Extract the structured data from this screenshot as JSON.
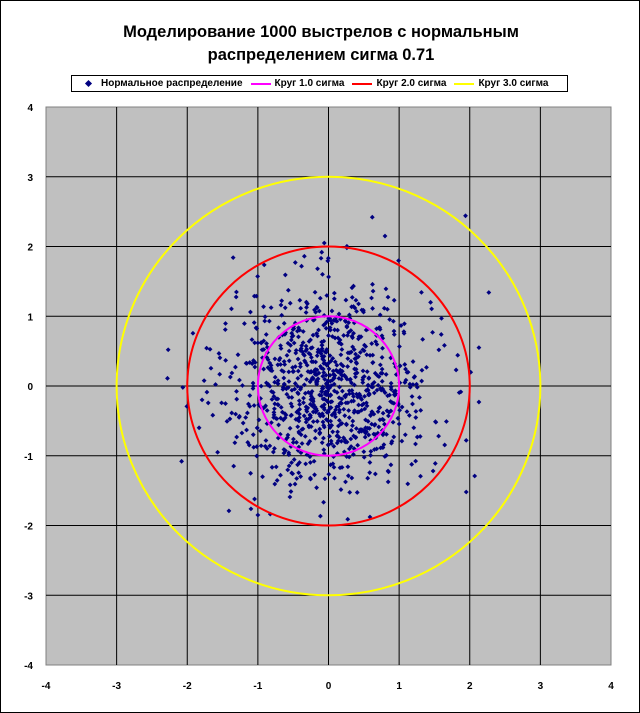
{
  "chart_data": {
    "type": "scatter",
    "title_lines": [
      "Моделирование 1000 выстрелов с нормальным",
      "распределением сигма 0.71"
    ],
    "xlim": [
      -4,
      4
    ],
    "ylim": [
      -4,
      4
    ],
    "x_ticks": [
      "-4",
      "-3",
      "-2",
      "-1",
      "0",
      "1",
      "2",
      "3",
      "4"
    ],
    "y_ticks": [
      "4",
      "3",
      "2",
      "1",
      "0",
      "-1",
      "-2",
      "-3",
      "-4"
    ],
    "grid": true,
    "plot_background": "#c0c0c0",
    "legend_position": "top",
    "series": [
      {
        "name": "Нормальное распределение",
        "kind": "points",
        "color": "#000080",
        "count": 1000,
        "sigma": 0.71
      },
      {
        "name": "Круг 1.0 сигма",
        "kind": "circle",
        "radius": 1.0,
        "color": "#ff00ff"
      },
      {
        "name": "Круг 2.0 сигма",
        "kind": "circle",
        "radius": 2.0,
        "color": "#ff0000"
      },
      {
        "name": "Круг 3.0 сигма",
        "kind": "circle",
        "radius": 3.0,
        "color": "#ffff00"
      }
    ],
    "outlier_points": [
      [
        0.62,
        2.42
      ],
      [
        1.94,
        2.44
      ],
      [
        2.27,
        1.34
      ],
      [
        -1.35,
        1.84
      ],
      [
        -0.47,
        1.77
      ],
      [
        -2.27,
        0.52
      ],
      [
        -2.28,
        0.11
      ],
      [
        -2.08,
        -1.08
      ],
      [
        -1.41,
        -1.79
      ],
      [
        -1.0,
        -1.85
      ],
      [
        1.95,
        -1.52
      ],
      [
        2.07,
        -1.29
      ],
      [
        2.13,
        0.55
      ],
      [
        2.13,
        -0.23
      ],
      [
        1.95,
        -0.78
      ],
      [
        0.8,
        2.15
      ],
      [
        0.26,
        1.98
      ],
      [
        -0.06,
        2.05
      ],
      [
        1.6,
        0.97
      ],
      [
        1.52,
        -0.52
      ]
    ]
  }
}
